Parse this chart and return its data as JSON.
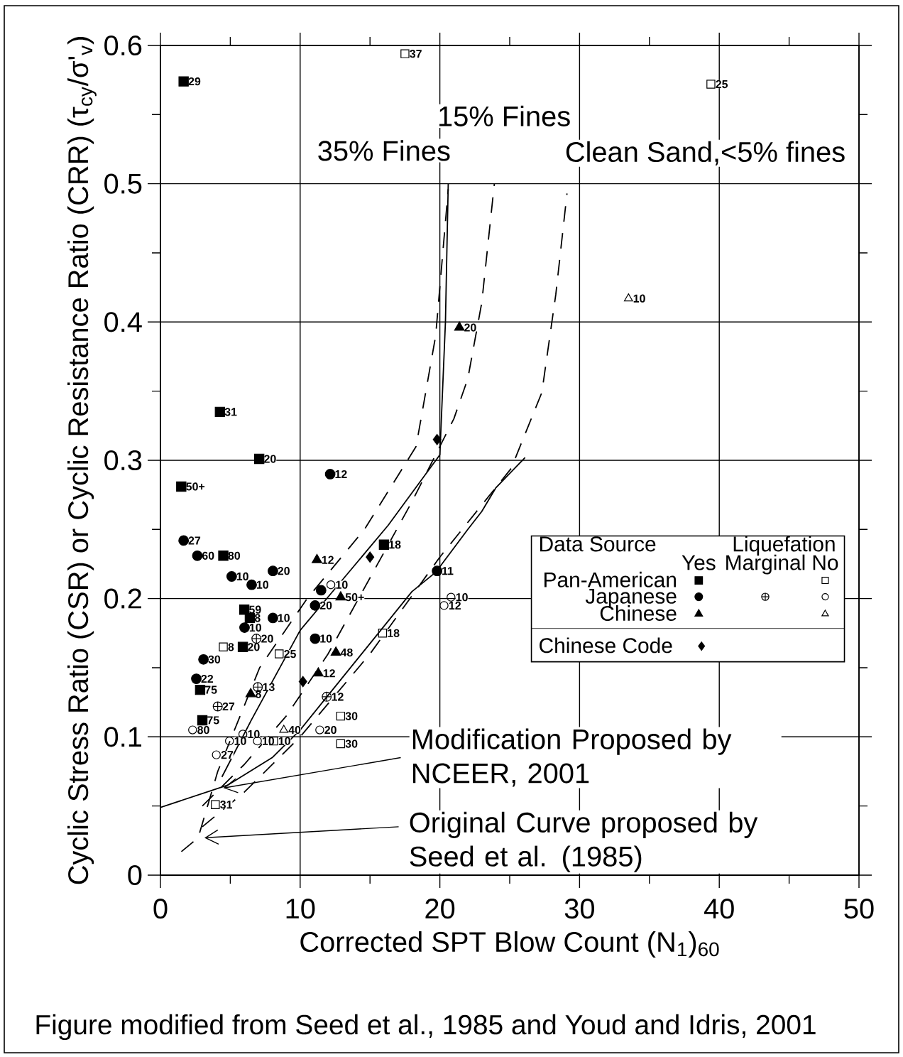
{
  "chart_data": {
    "type": "scatter",
    "xlabel": "Corrected SPT Blow Count (N$_{1}$)$_{60}$",
    "ylabel": "Cyclic Stress Ratio (CSR) or Cyclic Resistance Ratio (CRR) (τ$_{cy}$/σ'$_{v}$)",
    "xlim": [
      0,
      50
    ],
    "ylim": [
      0,
      0.6
    ],
    "xticks": [
      0,
      10,
      20,
      30,
      40,
      50
    ],
    "yticks": [
      0,
      0.1,
      0.2,
      0.3,
      0.4,
      0.5,
      0.6
    ],
    "grid": true,
    "legend": "right",
    "legend_title": "Data Source",
    "annotations": [
      {
        "text": "35% Fines",
        "x": 20.6,
        "y": 0.5
      },
      {
        "text": "15% Fines",
        "x": 23.9,
        "y": 0.5
      },
      {
        "text": "Clean Sand,<5% fines",
        "x": 29.1,
        "y": 0.493
      },
      {
        "text": "Modification Proposed by NCEER, 2001",
        "x": 4.5,
        "y": 0.063
      },
      {
        "text": "Original Curve proposed by Seed et al. (1985)",
        "x": 3.15,
        "y": 0.027
      },
      "Figure modified from Seed et al., 1985 and Youd and Idris, 2001",
      "Liquefation",
      "Yes",
      "No",
      "Marginal",
      {
        "text": "29",
        "x": 1.66,
        "y": 0.574
      },
      {
        "text": "31",
        "x": 4.26,
        "y": 0.335
      },
      {
        "text": "20",
        "x": 7.07,
        "y": 0.301
      },
      {
        "text": "50+",
        "x": 1.49,
        "y": 0.281
      },
      {
        "text": "80",
        "x": 4.5,
        "y": 0.231
      },
      {
        "text": "18",
        "x": 16.0,
        "y": 0.239
      },
      {
        "text": "59",
        "x": 6.0,
        "y": 0.192
      },
      {
        "text": "8",
        "x": 6.4,
        "y": 0.186
      },
      {
        "text": "20",
        "x": 5.9,
        "y": 0.165
      },
      {
        "text": "75",
        "x": 2.84,
        "y": 0.134
      },
      {
        "text": "75",
        "x": 3.0,
        "y": 0.112
      },
      {
        "text": "12",
        "x": 12.15,
        "y": 0.29
      },
      {
        "text": "27",
        "x": 1.66,
        "y": 0.242
      },
      {
        "text": "60",
        "x": 2.64,
        "y": 0.231
      },
      {
        "text": "10",
        "x": 5.1,
        "y": 0.216
      },
      {
        "text": "10",
        "x": 6.53,
        "y": 0.21
      },
      {
        "text": "20",
        "x": 8.05,
        "y": 0.22
      },
      {
        "text": "10",
        "x": 8.05,
        "y": 0.186
      },
      {
        "text": "10",
        "x": 6.02,
        "y": 0.179
      },
      {
        "text": "30",
        "x": 3.08,
        "y": 0.156
      },
      {
        "text": "22",
        "x": 2.57,
        "y": 0.142
      },
      {
        "text": "20",
        "x": 11.07,
        "y": 0.195
      },
      {
        "text": "10",
        "x": 11.07,
        "y": 0.171
      },
      {
        "text": "11",
        "x": 19.8,
        "y": 0.22
      },
      {
        "text": "20",
        "x": 21.4,
        "y": 0.396
      },
      {
        "text": "12",
        "x": 11.2,
        "y": 0.228
      },
      {
        "text": "48",
        "x": 12.56,
        "y": 0.161
      },
      {
        "text": "12",
        "x": 11.3,
        "y": 0.146
      },
      {
        "text": "8",
        "x": 6.46,
        "y": 0.131
      },
      {
        "text": "50+",
        "x": 12.9,
        "y": 0.201
      },
      {
        "text": "20",
        "x": 6.87,
        "y": 0.171
      },
      {
        "text": "13",
        "x": 6.97,
        "y": 0.136
      },
      {
        "text": "27",
        "x": 4.1,
        "y": 0.122
      },
      {
        "text": "12",
        "x": 11.9,
        "y": 0.129
      },
      {
        "text": "37",
        "x": 17.5,
        "y": 0.594
      },
      {
        "text": "25",
        "x": 39.4,
        "y": 0.572
      },
      {
        "text": "8",
        "x": 4.5,
        "y": 0.165
      },
      {
        "text": "25",
        "x": 8.5,
        "y": 0.16
      },
      {
        "text": "18",
        "x": 15.9,
        "y": 0.175
      },
      {
        "text": "30",
        "x": 12.9,
        "y": 0.115
      },
      {
        "text": "30",
        "x": 12.9,
        "y": 0.095
      },
      {
        "text": "10",
        "x": 8.1,
        "y": 0.097
      },
      {
        "text": "31",
        "x": 3.93,
        "y": 0.051
      },
      {
        "text": "80",
        "x": 2.3,
        "y": 0.105
      },
      {
        "text": "10",
        "x": 5.9,
        "y": 0.102
      },
      {
        "text": "10",
        "x": 4.94,
        "y": 0.097
      },
      {
        "text": "10",
        "x": 6.94,
        "y": 0.097
      },
      {
        "text": "27",
        "x": 4.0,
        "y": 0.087
      },
      {
        "text": "20",
        "x": 11.4,
        "y": 0.105
      },
      {
        "text": "10",
        "x": 20.8,
        "y": 0.201
      },
      {
        "text": "12",
        "x": 20.3,
        "y": 0.195
      },
      {
        "text": "10",
        "x": 12.2,
        "y": 0.21
      },
      {
        "text": "10",
        "x": 33.5,
        "y": 0.417
      },
      {
        "text": "40",
        "x": 8.83,
        "y": 0.105
      }
    ],
    "series": [
      {
        "type": "line",
        "color": "#000000",
        "marker": "none",
        "line_style": "solid",
        "x": [
          4.4,
          6.5,
          10.0,
          12.9,
          16.3,
          20.0,
          20.4,
          20.6
        ],
        "values": [
          0.071,
          0.112,
          0.177,
          0.212,
          0.253,
          0.304,
          0.4,
          0.5
        ]
      },
      {
        "type": "line",
        "color": "#000000",
        "marker": "none",
        "line_style": "solid",
        "x": [
          0,
          4.8,
          8,
          10,
          12,
          14,
          16,
          18,
          19.7,
          22,
          23,
          24,
          26.1
        ],
        "values": [
          0.049,
          0.065,
          0.085,
          0.105,
          0.13,
          0.155,
          0.18,
          0.205,
          0.219,
          0.25,
          0.263,
          0.28,
          0.302
        ]
      },
      {
        "type": "line",
        "color": "#000000",
        "marker": "none",
        "line_style": "dashed",
        "x": [
          1.5,
          2.7,
          4.1,
          7.1,
          10.5,
          14.6,
          18.3,
          19.7,
          20.6
        ],
        "values": [
          0.017,
          0.027,
          0.075,
          0.15,
          0.2,
          0.25,
          0.31,
          0.39,
          0.496
        ]
      },
      {
        "type": "line",
        "color": "#000000",
        "marker": "none",
        "line_style": "dashed",
        "x": [
          3,
          6,
          9,
          12,
          15,
          18,
          21,
          22,
          23,
          23.9
        ],
        "values": [
          0.05,
          0.08,
          0.115,
          0.16,
          0.215,
          0.27,
          0.33,
          0.359,
          0.414,
          0.5
        ]
      },
      {
        "type": "line",
        "color": "#000000",
        "marker": "none",
        "line_style": "dashed",
        "x": [
          3,
          6,
          10,
          15,
          20,
          25.1,
          27.3,
          28.3,
          29.1
        ],
        "values": [
          0.035,
          0.06,
          0.1,
          0.16,
          0.23,
          0.294,
          0.349,
          0.42,
          0.493
        ]
      },
      {
        "name": "Pan-American",
        "color": "#000000",
        "marker": "square",
        "x": [
          1.66,
          4.26,
          7.07,
          1.49,
          4.5,
          16.0,
          6.0,
          6.4,
          5.9,
          2.84,
          3.0
        ],
        "values": [
          0.574,
          0.335,
          0.301,
          0.281,
          0.231,
          0.239,
          0.192,
          0.186,
          0.165,
          0.134,
          0.112
        ]
      },
      {
        "name": "Japanese",
        "color": "#000000",
        "marker": "circle",
        "x": [
          12.15,
          1.66,
          2.64,
          5.1,
          6.53,
          8.05,
          8.05,
          6.02,
          3.08,
          2.57,
          11.07,
          11.5,
          11.07,
          19.8
        ],
        "values": [
          0.29,
          0.242,
          0.231,
          0.216,
          0.21,
          0.22,
          0.186,
          0.179,
          0.156,
          0.142,
          0.195,
          0.206,
          0.171,
          0.22
        ]
      },
      {
        "name": "Chinese",
        "color": "#000000",
        "marker": "triangle",
        "x": [
          21.4,
          11.2,
          12.56,
          11.3,
          6.46,
          12.9
        ],
        "values": [
          0.396,
          0.228,
          0.161,
          0.146,
          0.131,
          0.201
        ]
      },
      {
        "color": "#000000",
        "marker": "cross",
        "x": [
          6.87,
          6.97,
          4.1,
          11.9
        ],
        "values": [
          0.171,
          0.136,
          0.122,
          0.129
        ]
      },
      {
        "color": "#000000",
        "marker": "square-open",
        "x": [
          17.5,
          39.4,
          4.5,
          8.5,
          15.9,
          12.9,
          12.9,
          8.1,
          3.93
        ],
        "values": [
          0.594,
          0.572,
          0.165,
          0.16,
          0.175,
          0.115,
          0.095,
          0.097,
          0.051
        ]
      },
      {
        "color": "#000000",
        "marker": "circle-open",
        "x": [
          2.3,
          5.9,
          4.94,
          6.94,
          4.0,
          11.4,
          20.8,
          20.3,
          12.2
        ],
        "values": [
          0.105,
          0.102,
          0.097,
          0.097,
          0.087,
          0.105,
          0.201,
          0.195,
          0.21
        ]
      },
      {
        "color": "#000000",
        "marker": "triangle-open",
        "x": [
          33.5,
          8.83
        ],
        "values": [
          0.417,
          0.105
        ]
      },
      {
        "name": "Chinese Code",
        "color": "#000000",
        "marker": "diamond",
        "x": [
          19.8,
          15.0,
          10.2
        ],
        "values": [
          0.315,
          0.23,
          0.14
        ]
      }
    ]
  }
}
